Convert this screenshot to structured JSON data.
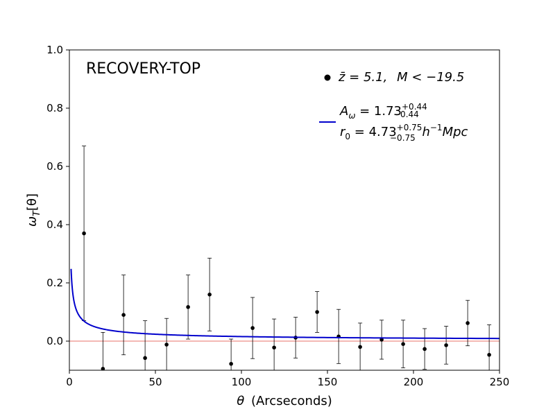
{
  "chart_data": {
    "type": "scatter",
    "panel_label": "RECOVERY-TOP",
    "xlabel": "(Arcseconds)",
    "xlabel_symbol": "θ",
    "ylabel": "ω",
    "ylabel_sub": "T",
    "ylabel_arg": "[θ]",
    "xlim": [
      0,
      250
    ],
    "ylim": [
      -0.1,
      1.0
    ],
    "xticks": [
      0,
      50,
      100,
      150,
      200,
      250
    ],
    "yticks": [
      0.0,
      0.2,
      0.4,
      0.6,
      0.8,
      1.0
    ],
    "xtick_labels": [
      "0",
      "50",
      "100",
      "150",
      "200",
      "250"
    ],
    "ytick_labels": [
      "0.0",
      "0.2",
      "0.4",
      "0.6",
      "0.8",
      "1.0"
    ],
    "zero_line_color": "#e8706a",
    "fit_color": "#0000cc",
    "marker_color": "#000000",
    "series": [
      {
        "name": "data",
        "x": [
          8.5,
          19.5,
          31.5,
          44.0,
          56.5,
          69.0,
          81.5,
          94.0,
          106.5,
          119.0,
          131.5,
          144.0,
          156.5,
          169.0,
          181.5,
          194.0,
          206.5,
          219.0,
          231.5,
          244.0
        ],
        "y": [
          0.37,
          -0.095,
          0.09,
          -0.058,
          -0.012,
          0.117,
          0.16,
          -0.078,
          0.045,
          -0.022,
          0.012,
          0.1,
          0.016,
          -0.02,
          0.005,
          -0.01,
          -0.027,
          -0.014,
          0.062,
          -0.047
        ],
        "yerr": [
          0.3,
          0.125,
          0.137,
          0.128,
          0.09,
          0.11,
          0.125,
          0.085,
          0.105,
          0.098,
          0.07,
          0.07,
          0.093,
          0.082,
          0.067,
          0.082,
          0.07,
          0.065,
          0.078,
          0.103
        ]
      },
      {
        "name": "fit",
        "type": "line",
        "amplitude_at_1arcsec": 0.248,
        "slope": -0.6
      }
    ],
    "legend": {
      "entry1": {
        "zbar": "z̄ = 5.1,",
        "mag": "M < −19.5"
      },
      "entry2": {
        "a_label": "A",
        "a_sub": "ω",
        "a_val": " = 1.73",
        "a_sup": "+0.44",
        "a_low": "−0.44",
        "r_label": "r",
        "r_sub": "0",
        "r_val": " = 4.73",
        "r_sup": "+0.75",
        "r_low": "−0.75",
        "r_unit": "h",
        "r_unit_sup": "−1",
        "r_unit_tail": "Mpc"
      },
      "position": "top-right"
    }
  }
}
